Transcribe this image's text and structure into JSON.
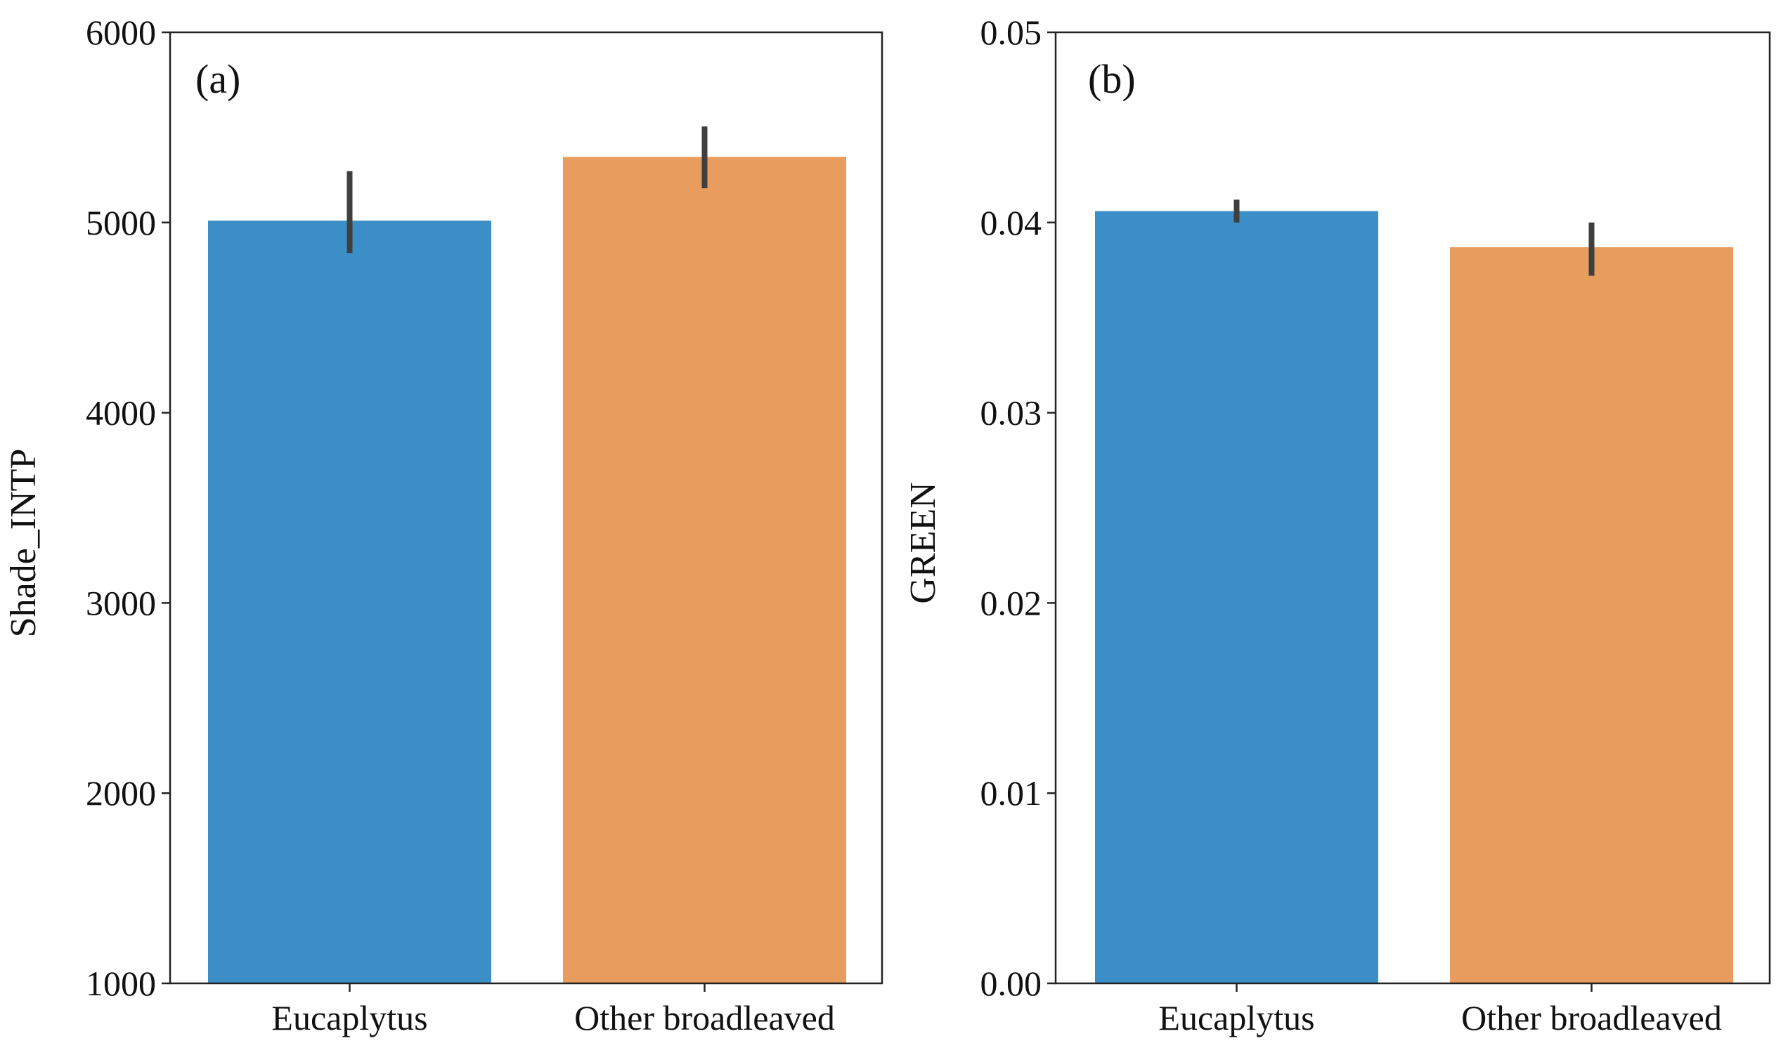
{
  "chart_data": [
    {
      "type": "bar",
      "panel_label": "(a)",
      "categories": [
        "Eucaplytus",
        "Other broadleaved"
      ],
      "values": [
        5010,
        5345
      ],
      "error_low": [
        4840,
        5180
      ],
      "error_high": [
        5270,
        5505
      ],
      "colors": [
        "#3b8fc6",
        "#e89d5e"
      ],
      "xlabel": "",
      "ylabel": "Shade_INTP",
      "ylim": [
        1000,
        6000
      ],
      "yticks": [
        1000,
        2000,
        3000,
        4000,
        5000,
        6000
      ],
      "ytick_labels": [
        "1000",
        "2000",
        "3000",
        "4000",
        "5000",
        "6000"
      ],
      "grid": false
    },
    {
      "type": "bar",
      "panel_label": "(b)",
      "categories": [
        "Eucaplytus",
        "Other broadleaved"
      ],
      "values": [
        0.0406,
        0.0387
      ],
      "error_low": [
        0.04,
        0.0372
      ],
      "error_high": [
        0.0412,
        0.04
      ],
      "colors": [
        "#3b8fc6",
        "#e89d5e"
      ],
      "xlabel": "",
      "ylabel": "GREEN",
      "ylim": [
        0,
        0.05
      ],
      "yticks": [
        0,
        0.01,
        0.02,
        0.03,
        0.04,
        0.05
      ],
      "ytick_labels": [
        "0.00",
        "0.01",
        "0.02",
        "0.03",
        "0.04",
        "0.05"
      ],
      "grid": false
    }
  ]
}
